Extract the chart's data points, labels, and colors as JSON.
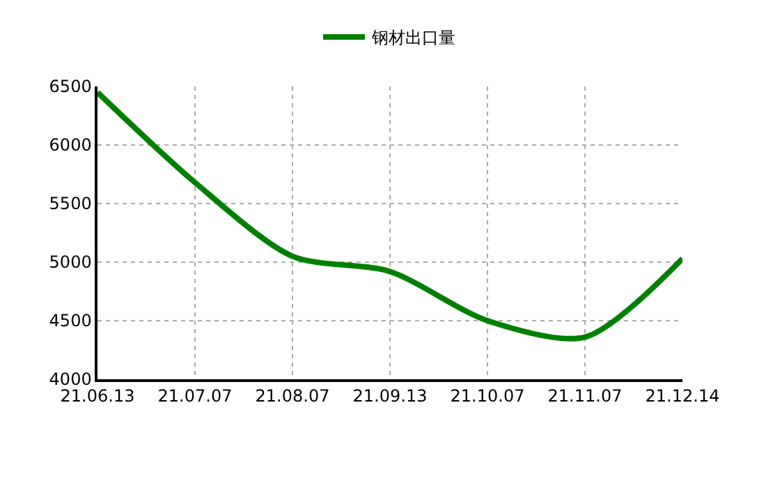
{
  "chart_data": {
    "type": "line",
    "categories": [
      "21.06.13",
      "21.07.07",
      "21.08.07",
      "21.09.13",
      "21.10.07",
      "21.11.07",
      "21.12.14"
    ],
    "series": [
      {
        "name": "钢材出口量",
        "color": "#008000",
        "values": [
          6450,
          5680,
          5050,
          4920,
          4500,
          4360,
          5030
        ]
      }
    ],
    "ylim": [
      4000,
      6500
    ],
    "yticks": [
      4000,
      4500,
      5000,
      5500,
      6000,
      6500
    ],
    "grid": true,
    "legend": "top",
    "marker": "none",
    "line_style": "solid"
  }
}
